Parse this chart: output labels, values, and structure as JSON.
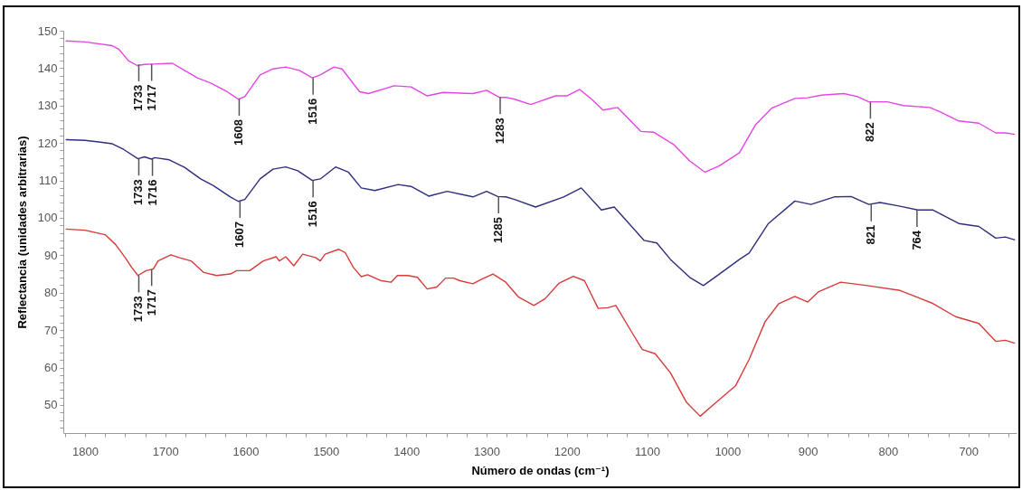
{
  "chart_data": {
    "type": "line",
    "xlabel": "Número de ondas (cm⁻¹)",
    "ylabel": "Reflectancia (unidades arbitrarias)",
    "xlim": [
      1827,
      640
    ],
    "ylim": [
      42.5,
      150
    ],
    "xticks": [
      {
        "value": 1825,
        "label": null
      },
      1800,
      {
        "value": 1775,
        "label": null
      },
      {
        "value": 1750,
        "label": null
      },
      {
        "value": 1725,
        "label": null
      },
      1700,
      {
        "value": 1675,
        "label": null
      },
      {
        "value": 1650,
        "label": null
      },
      {
        "value": 1625,
        "label": null
      },
      1600,
      {
        "value": 1575,
        "label": null
      },
      {
        "value": 1550,
        "label": null
      },
      {
        "value": 1525,
        "label": null
      },
      1500,
      {
        "value": 1475,
        "label": null
      },
      {
        "value": 1450,
        "label": null
      },
      {
        "value": 1425,
        "label": null
      },
      1400,
      {
        "value": 1375,
        "label": null
      },
      {
        "value": 1350,
        "label": null
      },
      {
        "value": 1325,
        "label": null
      },
      1300,
      {
        "value": 1275,
        "label": null
      },
      {
        "value": 1250,
        "label": null
      },
      {
        "value": 1225,
        "label": null
      },
      1200,
      {
        "value": 1175,
        "label": null
      },
      {
        "value": 1150,
        "label": null
      },
      {
        "value": 1125,
        "label": null
      },
      1100,
      {
        "value": 1075,
        "label": null
      },
      {
        "value": 1050,
        "label": null
      },
      {
        "value": 1025,
        "label": null
      },
      1000,
      {
        "value": 975,
        "label": null
      },
      {
        "value": 950,
        "label": null
      },
      {
        "value": 925,
        "label": null
      },
      900,
      {
        "value": 875,
        "label": null
      },
      {
        "value": 850,
        "label": null
      },
      {
        "value": 825,
        "label": null
      },
      800,
      {
        "value": 775,
        "label": null
      },
      {
        "value": 750,
        "label": null
      },
      {
        "value": 725,
        "label": null
      },
      700,
      {
        "value": 675,
        "label": null
      },
      {
        "value": 650,
        "label": null
      }
    ],
    "yticks": [
      {
        "value": 44,
        "label": null
      },
      {
        "value": 46,
        "label": null
      },
      {
        "value": 48,
        "label": null
      },
      50,
      {
        "value": 52,
        "label": null
      },
      {
        "value": 54,
        "label": null
      },
      {
        "value": 56,
        "label": null
      },
      {
        "value": 58,
        "label": null
      },
      60,
      {
        "value": 62,
        "label": null
      },
      {
        "value": 64,
        "label": null
      },
      {
        "value": 66,
        "label": null
      },
      {
        "value": 68,
        "label": null
      },
      70,
      {
        "value": 72,
        "label": null
      },
      {
        "value": 74,
        "label": null
      },
      {
        "value": 76,
        "label": null
      },
      {
        "value": 78,
        "label": null
      },
      80,
      {
        "value": 82,
        "label": null
      },
      {
        "value": 84,
        "label": null
      },
      {
        "value": 86,
        "label": null
      },
      {
        "value": 88,
        "label": null
      },
      90,
      {
        "value": 92,
        "label": null
      },
      {
        "value": 94,
        "label": null
      },
      {
        "value": 96,
        "label": null
      },
      {
        "value": 98,
        "label": null
      },
      100,
      {
        "value": 102,
        "label": null
      },
      {
        "value": 104,
        "label": null
      },
      {
        "value": 106,
        "label": null
      },
      {
        "value": 108,
        "label": null
      },
      110,
      {
        "value": 112,
        "label": null
      },
      {
        "value": 114,
        "label": null
      },
      {
        "value": 116,
        "label": null
      },
      {
        "value": 118,
        "label": null
      },
      120,
      {
        "value": 122,
        "label": null
      },
      {
        "value": 124,
        "label": null
      },
      {
        "value": 126,
        "label": null
      },
      {
        "value": 128,
        "label": null
      },
      130,
      {
        "value": 132,
        "label": null
      },
      {
        "value": 134,
        "label": null
      },
      {
        "value": 136,
        "label": null
      },
      {
        "value": 138,
        "label": null
      },
      140,
      {
        "value": 142,
        "label": null
      },
      {
        "value": 144,
        "label": null
      },
      {
        "value": 146,
        "label": null
      },
      {
        "value": 148,
        "label": null
      },
      150
    ],
    "series": [
      {
        "color": "#e545e5",
        "x": [
          1824,
          1800,
          1766,
          1758,
          1746,
          1735,
          1726,
          1715,
          1691,
          1676,
          1660,
          1644,
          1623,
          1609,
          1601,
          1582,
          1566,
          1550,
          1533,
          1517,
          1507,
          1490,
          1480,
          1458,
          1447,
          1415,
          1394,
          1374,
          1354,
          1317,
          1300,
          1284,
          1276,
          1265,
          1245,
          1214,
          1200,
          1184,
          1170,
          1155,
          1137,
          1108,
          1092,
          1067,
          1047,
          1028,
          1010,
          985,
          965,
          945,
          916,
          900,
          883,
          855,
          838,
          824,
          801,
          781,
          748,
          736,
          712,
          687,
          666,
          654,
          642
        ],
        "values": [
          147.3,
          147.0,
          146.0,
          145.1,
          142.0,
          140.7,
          141.0,
          141.1,
          141.3,
          139.4,
          137.4,
          136.1,
          133.7,
          131.7,
          132.4,
          138.2,
          139.8,
          140.3,
          139.4,
          137.4,
          138.2,
          140.3,
          139.8,
          133.7,
          133.2,
          135.3,
          135.0,
          132.6,
          133.5,
          133.2,
          134.1,
          132.2,
          132.2,
          131.7,
          130.3,
          132.6,
          132.6,
          134.3,
          131.9,
          128.8,
          129.5,
          123.1,
          122.9,
          119.6,
          115.2,
          112.2,
          113.9,
          117.4,
          124.9,
          129.3,
          131.9,
          132.1,
          132.8,
          133.2,
          132.4,
          131.0,
          131.0,
          130.0,
          129.5,
          128.4,
          125.9,
          125.3,
          122.7,
          122.7,
          122.3
        ]
      },
      {
        "color": "#2e2e7e",
        "x": [
          1824,
          1800,
          1783,
          1766,
          1752,
          1734,
          1726,
          1717,
          1713,
          1695,
          1676,
          1656,
          1640,
          1619,
          1609,
          1601,
          1582,
          1566,
          1550,
          1535,
          1517,
          1507,
          1488,
          1472,
          1456,
          1439,
          1410,
          1394,
          1372,
          1349,
          1317,
          1300,
          1286,
          1276,
          1265,
          1239,
          1204,
          1182,
          1157,
          1141,
          1104,
          1088,
          1071,
          1047,
          1030,
          1010,
          985,
          973,
          949,
          916,
          896,
          867,
          846,
          824,
          810,
          785,
          763,
          744,
          712,
          687,
          666,
          654,
          642
        ],
        "values": [
          120.9,
          120.7,
          120.3,
          119.8,
          118.3,
          115.8,
          116.3,
          115.7,
          116.1,
          115.5,
          113.5,
          110.4,
          108.6,
          105.6,
          104.4,
          104.9,
          110.4,
          113.0,
          113.6,
          112.6,
          110.0,
          110.4,
          113.6,
          112.2,
          108.0,
          107.3,
          108.9,
          108.4,
          105.8,
          107.1,
          105.6,
          107.1,
          105.7,
          105.6,
          104.9,
          102.9,
          105.6,
          108.0,
          102.1,
          102.9,
          94.0,
          93.3,
          88.9,
          84.1,
          81.9,
          85.0,
          88.9,
          90.6,
          98.5,
          104.5,
          103.6,
          105.6,
          105.7,
          103.6,
          104.1,
          103.1,
          102.1,
          102.1,
          98.5,
          97.7,
          94.6,
          94.9,
          94.1
        ]
      },
      {
        "color": "#d93a3a",
        "x": [
          1824,
          1800,
          1775,
          1762,
          1750,
          1742,
          1734,
          1724,
          1715,
          1709,
          1693,
          1683,
          1668,
          1652,
          1636,
          1619,
          1611,
          1595,
          1578,
          1562,
          1558,
          1550,
          1540,
          1529,
          1513,
          1507,
          1501,
          1484,
          1476,
          1466,
          1456,
          1448,
          1431,
          1419,
          1411,
          1398,
          1386,
          1374,
          1362,
          1351,
          1341,
          1333,
          1317,
          1305,
          1292,
          1276,
          1260,
          1241,
          1227,
          1210,
          1192,
          1178,
          1161,
          1149,
          1139,
          1121,
          1106,
          1090,
          1071,
          1051,
          1034,
          1014,
          990,
          973,
          953,
          936,
          916,
          900,
          887,
          859,
          826,
          785,
          744,
          716,
          687,
          666,
          654,
          642
        ],
        "values": [
          97.0,
          96.7,
          95.5,
          92.9,
          89.4,
          86.8,
          84.6,
          85.9,
          86.3,
          88.5,
          90.1,
          89.4,
          88.5,
          85.4,
          84.6,
          85.0,
          85.9,
          85.9,
          88.5,
          89.6,
          88.5,
          89.6,
          87.2,
          90.3,
          89.4,
          88.5,
          90.3,
          91.6,
          90.7,
          86.8,
          84.3,
          84.8,
          83.2,
          82.8,
          84.6,
          84.6,
          84.1,
          81.0,
          81.5,
          83.9,
          83.9,
          83.2,
          82.4,
          83.7,
          85.0,
          82.8,
          78.8,
          76.6,
          78.4,
          82.5,
          84.4,
          83.2,
          75.8,
          76.0,
          76.6,
          70.1,
          64.8,
          63.7,
          58.6,
          50.7,
          47.0,
          50.7,
          55.1,
          62.2,
          72.3,
          77.1,
          79.0,
          77.5,
          80.2,
          82.8,
          81.9,
          80.6,
          77.1,
          73.6,
          71.8,
          67.0,
          67.3,
          66.5
        ]
      }
    ],
    "annotations": [
      {
        "text": "1733",
        "x": 1733,
        "y": 141.0
      },
      {
        "text": "1717",
        "x": 1717,
        "y": 141.1
      },
      {
        "text": "1608",
        "x": 1608,
        "y": 131.8
      },
      {
        "text": "1516",
        "x": 1516,
        "y": 137.4
      },
      {
        "text": "1283",
        "x": 1283,
        "y": 132.2
      },
      {
        "text": "822",
        "x": 822,
        "y": 131.0
      },
      {
        "text": "1733",
        "x": 1733,
        "y": 115.8
      },
      {
        "text": "1716",
        "x": 1716,
        "y": 115.7
      },
      {
        "text": "1607",
        "x": 1607,
        "y": 104.5
      },
      {
        "text": "1516",
        "x": 1516,
        "y": 110.0
      },
      {
        "text": "1285",
        "x": 1285,
        "y": 105.7
      },
      {
        "text": "821",
        "x": 821,
        "y": 103.6
      },
      {
        "text": "764",
        "x": 764,
        "y": 102.1
      },
      {
        "text": "1733",
        "x": 1733,
        "y": 84.6
      },
      {
        "text": "1717",
        "x": 1717,
        "y": 86.3
      }
    ]
  }
}
